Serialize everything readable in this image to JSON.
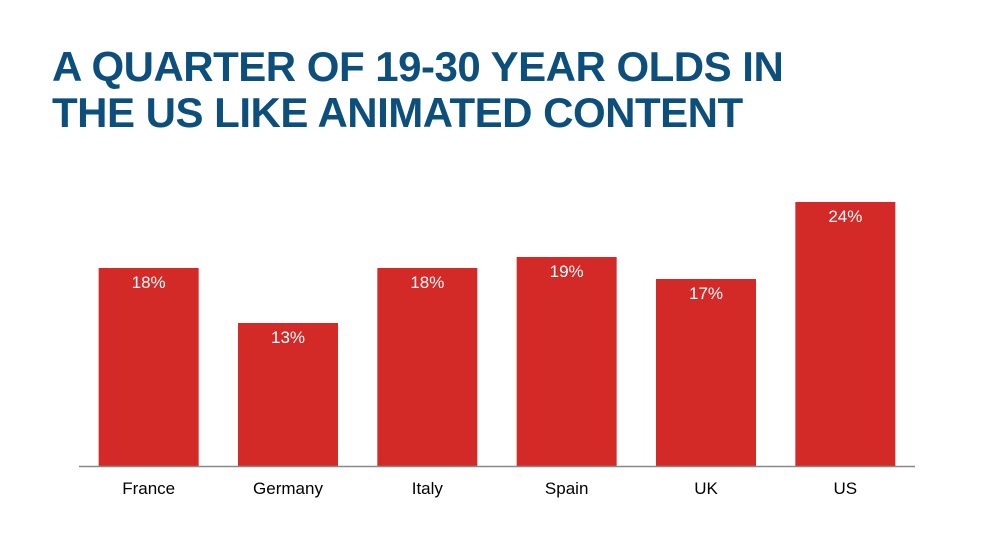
{
  "title": {
    "line1": "A QUARTER OF 19-30 YEAR OLDS IN",
    "line2": "THE US LIKE ANIMATED CONTENT"
  },
  "colors": {
    "title": "#0d4f7c",
    "bar": "#d42a27",
    "axis": "#888888"
  },
  "chart_data": {
    "type": "bar",
    "title": "A QUARTER OF 19-30 YEAR OLDS IN THE US LIKE ANIMATED CONTENT",
    "categories": [
      "France",
      "Germany",
      "Italy",
      "Spain",
      "UK",
      "US"
    ],
    "values": [
      18,
      13,
      18,
      19,
      17,
      24
    ],
    "data_labels": [
      "18%",
      "13%",
      "18%",
      "19%",
      "17%",
      "24%"
    ],
    "xlabel": "",
    "ylabel": "",
    "ylim": [
      0,
      24
    ],
    "grid": false,
    "legend": "none"
  }
}
